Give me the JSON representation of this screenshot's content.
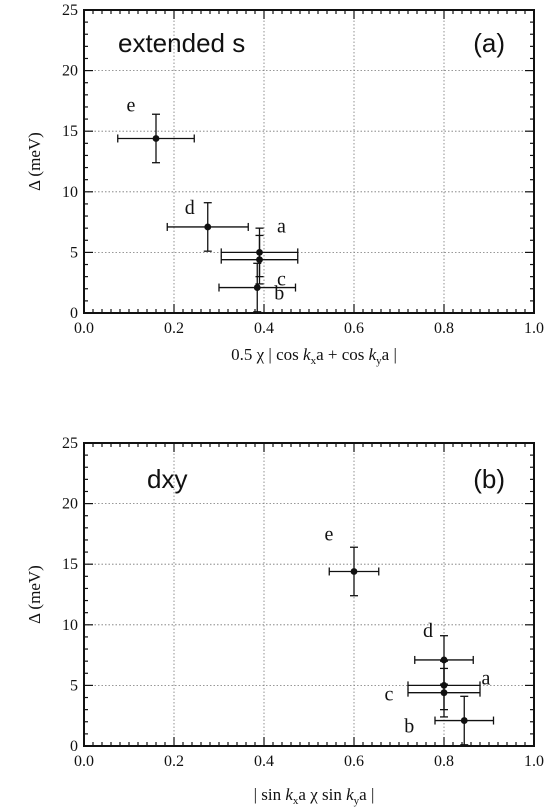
{
  "chart_data": [
    {
      "type": "scatter",
      "panel_label": "(a)",
      "annotation": "extended s",
      "xlabel": "0.5 x | cos kxa + cos kya |",
      "xlabel_parts": [
        "0.5 χ | cos ",
        "k",
        "x",
        "a + cos ",
        "k",
        "y",
        "a |"
      ],
      "ylabel": "Δ (meV)",
      "xlim": [
        0.0,
        1.0
      ],
      "ylim": [
        0,
        25
      ],
      "xticks": [
        "0.0",
        "0.2",
        "0.4",
        "0.6",
        "0.8",
        "1.0"
      ],
      "yticks": [
        "0",
        "5",
        "10",
        "15",
        "20",
        "25"
      ],
      "grid": true,
      "points": [
        {
          "label": "a",
          "x": 0.39,
          "y": 5.0,
          "xerr": 0.085,
          "yerr": 2.0
        },
        {
          "label": "b",
          "x": 0.385,
          "y": 2.1,
          "xerr": 0.085,
          "yerr": 2.0
        },
        {
          "label": "c",
          "x": 0.39,
          "y": 4.4,
          "xerr": 0.085,
          "yerr": 2.0
        },
        {
          "label": "d",
          "x": 0.275,
          "y": 7.1,
          "xerr": 0.09,
          "yerr": 2.0
        },
        {
          "label": "e",
          "x": 0.16,
          "y": 14.4,
          "xerr": 0.085,
          "yerr": 2.0
        }
      ]
    },
    {
      "type": "scatter",
      "panel_label": "(b)",
      "annotation": "dxy",
      "xlabel": "| sin kxa x sin kya |",
      "xlabel_parts": [
        "| sin ",
        "k",
        "x",
        "a  χ  sin ",
        "k",
        "y",
        "a |"
      ],
      "ylabel": "Δ (meV)",
      "xlim": [
        0.0,
        1.0
      ],
      "ylim": [
        0,
        25
      ],
      "xticks": [
        "0.0",
        "0.2",
        "0.4",
        "0.6",
        "0.8",
        "1.0"
      ],
      "yticks": [
        "0",
        "5",
        "10",
        "15",
        "20",
        "25"
      ],
      "grid": true,
      "points": [
        {
          "label": "a",
          "x": 0.8,
          "y": 5.0,
          "xerr": 0.08,
          "yerr": 2.0
        },
        {
          "label": "b",
          "x": 0.845,
          "y": 2.1,
          "xerr": 0.065,
          "yerr": 2.0
        },
        {
          "label": "c",
          "x": 0.8,
          "y": 4.4,
          "xerr": 0.08,
          "yerr": 2.0
        },
        {
          "label": "d",
          "x": 0.8,
          "y": 7.1,
          "xerr": 0.065,
          "yerr": 2.0
        },
        {
          "label": "e",
          "x": 0.6,
          "y": 14.4,
          "xerr": 0.055,
          "yerr": 2.0
        }
      ]
    }
  ]
}
